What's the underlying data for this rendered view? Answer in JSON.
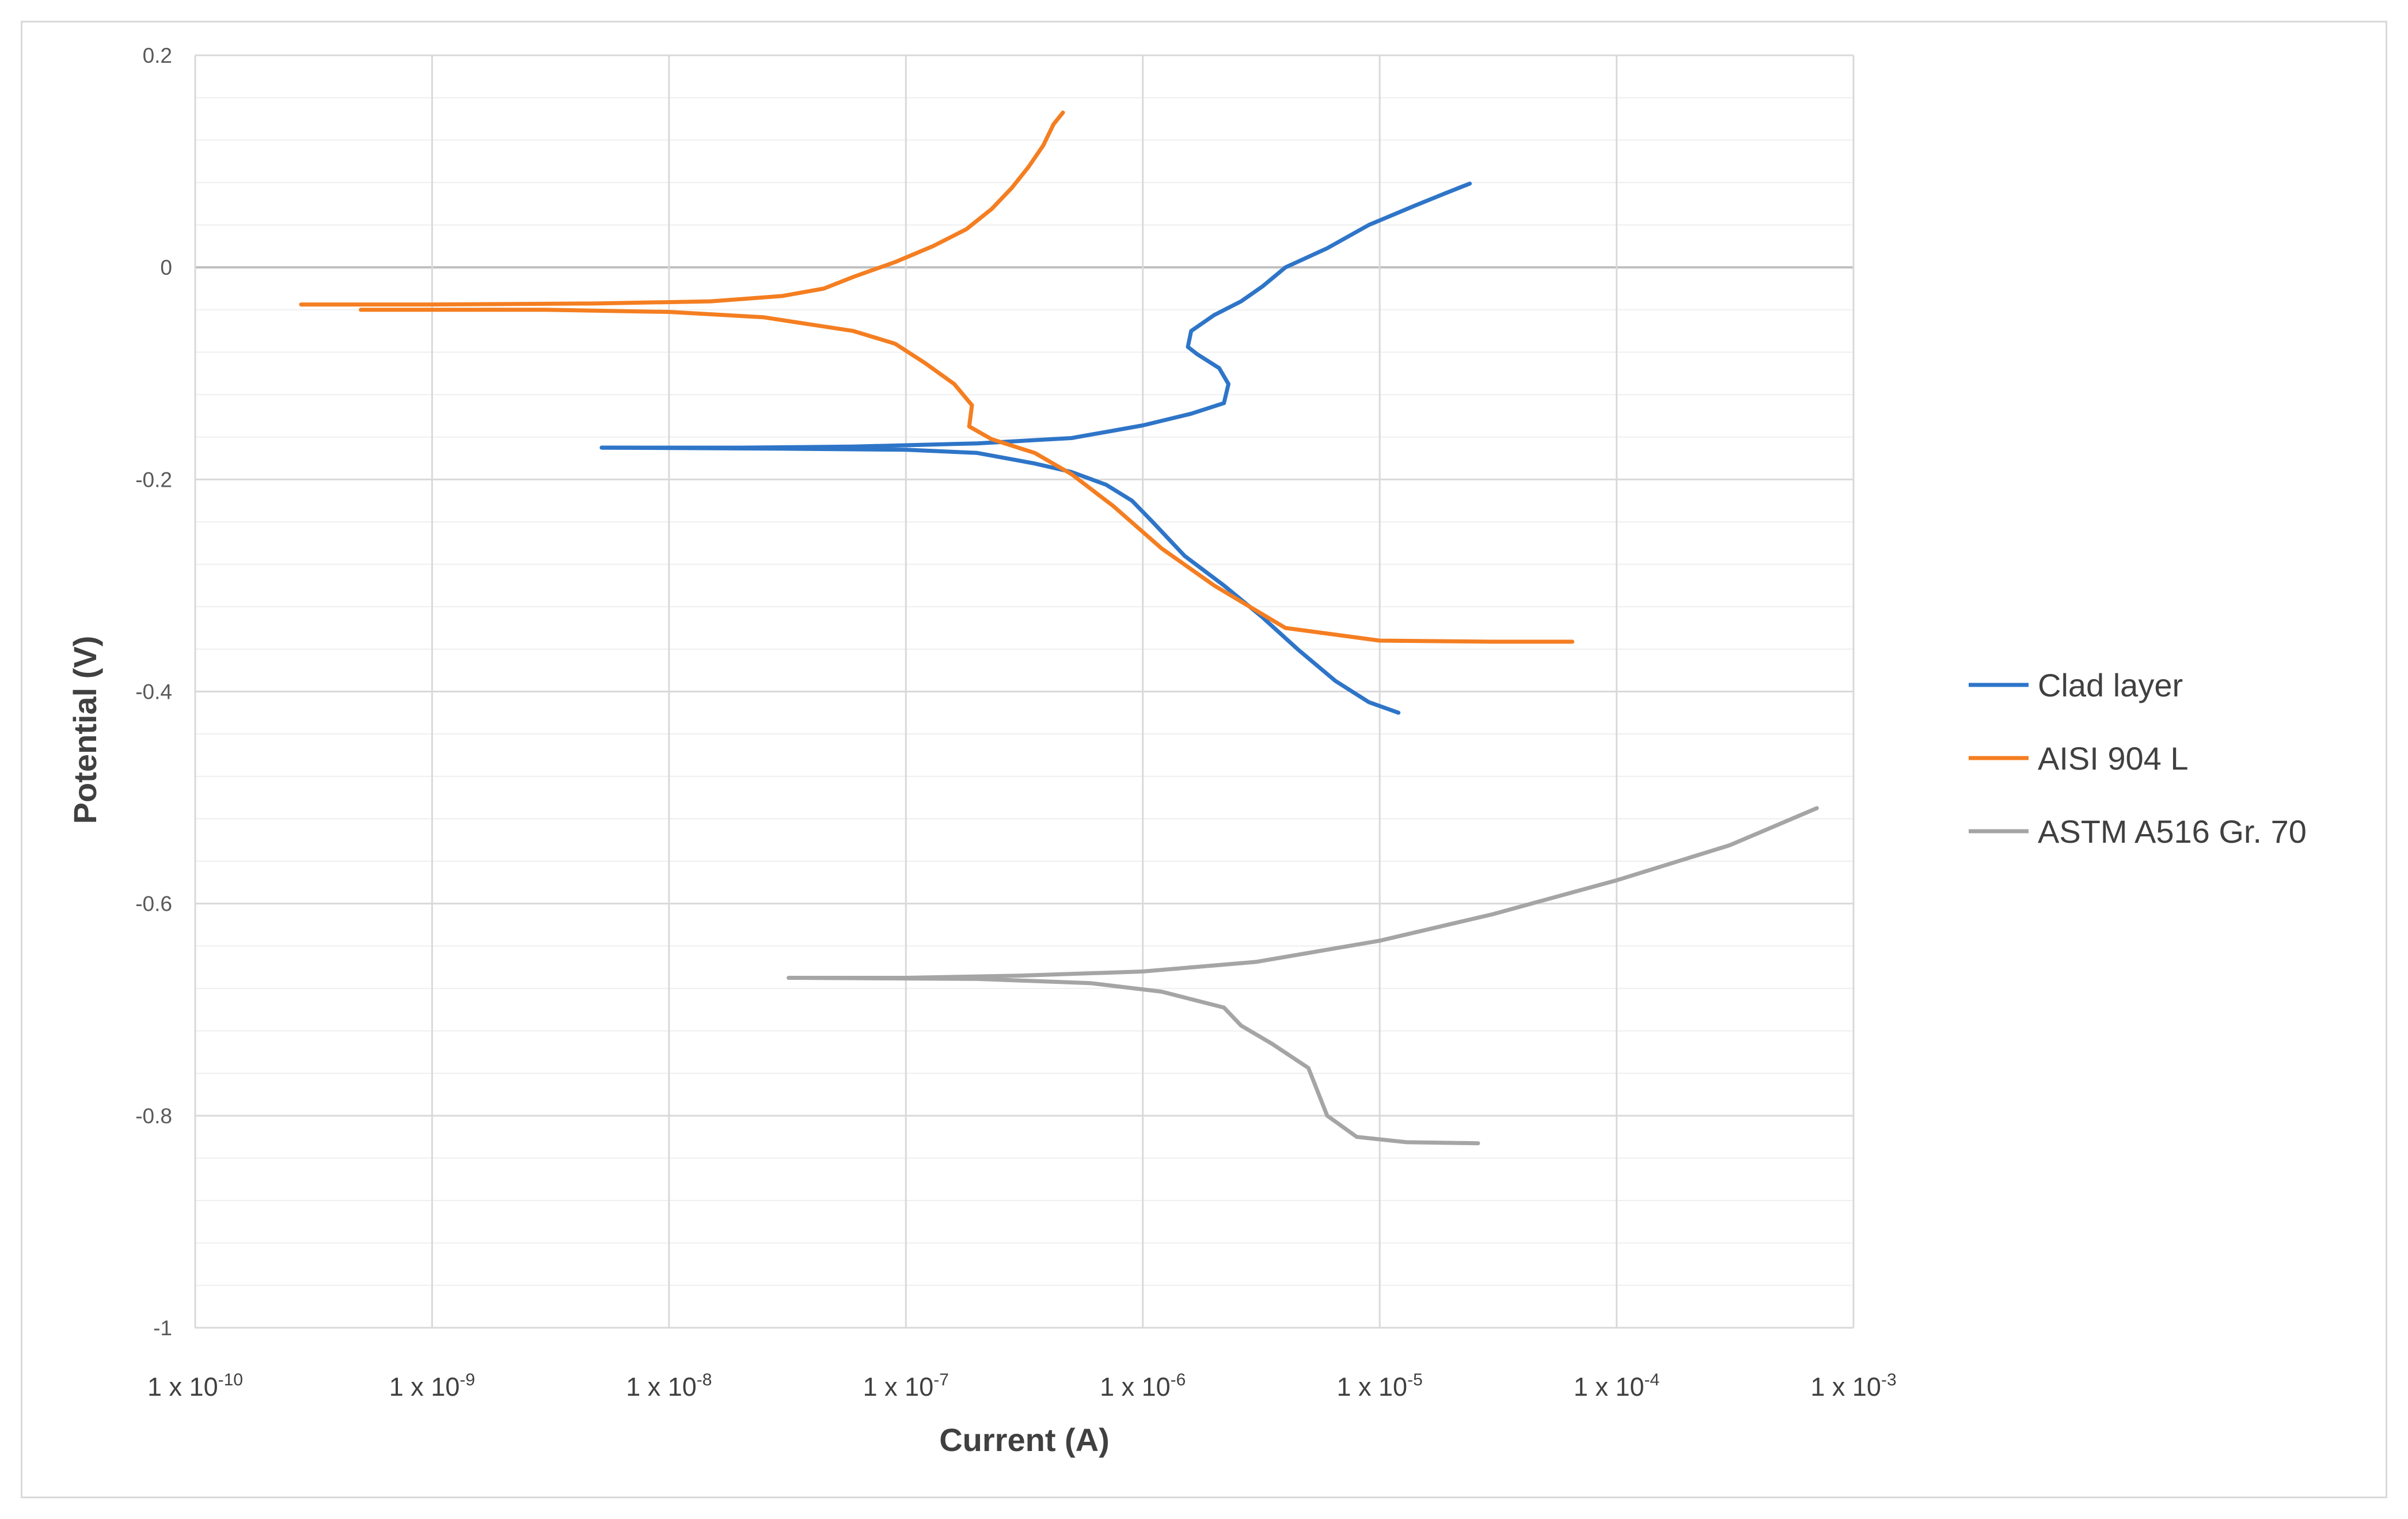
{
  "chart_data": {
    "type": "line",
    "title": "",
    "xlabel": "Current (A)",
    "ylabel": "Potential (V)",
    "x_scale": "log",
    "xlim": [
      1e-10,
      0.001
    ],
    "ylim": [
      -1,
      0.2
    ],
    "x_ticks": [
      {
        "value": 1e-10,
        "base": "1 x 10",
        "exp": "-10"
      },
      {
        "value": 1e-09,
        "base": "1 x 10",
        "exp": "-9"
      },
      {
        "value": 1e-08,
        "base": "1 x 10",
        "exp": "-8"
      },
      {
        "value": 1e-07,
        "base": "1 x 10",
        "exp": "-7"
      },
      {
        "value": 1e-06,
        "base": "1 x 10",
        "exp": "-6"
      },
      {
        "value": 1e-05,
        "base": "1 x 10",
        "exp": "-5"
      },
      {
        "value": 0.0001,
        "base": "1 x 10",
        "exp": "-4"
      },
      {
        "value": 0.001,
        "base": "1 x 10",
        "exp": "-3"
      }
    ],
    "y_ticks": [
      {
        "value": 0.2,
        "label": "0.2"
      },
      {
        "value": 0,
        "label": "0"
      },
      {
        "value": -0.2,
        "label": "-0.2"
      },
      {
        "value": -0.4,
        "label": "-0.4"
      },
      {
        "value": -0.6,
        "label": "-0.6"
      },
      {
        "value": -0.8,
        "label": "-0.8"
      },
      {
        "value": -1,
        "label": "-1"
      }
    ],
    "y_minor_step": 0.04,
    "grid": true,
    "legend_position": "right",
    "series": [
      {
        "name": "Clad layer",
        "color": "#2e75c8",
        "points": [
          [
            5.2e-09,
            -0.17
          ],
          [
            2e-08,
            -0.17
          ],
          [
            6e-08,
            -0.169
          ],
          [
            2e-07,
            -0.166
          ],
          [
            5e-07,
            -0.161
          ],
          [
            1e-06,
            -0.149
          ],
          [
            1.6e-06,
            -0.138
          ],
          [
            2.2e-06,
            -0.128
          ],
          [
            2.3e-06,
            -0.11
          ],
          [
            2.1e-06,
            -0.095
          ],
          [
            1.7e-06,
            -0.082
          ],
          [
            1.55e-06,
            -0.075
          ],
          [
            1.6e-06,
            -0.06
          ],
          [
            2e-06,
            -0.045
          ],
          [
            2.6e-06,
            -0.032
          ],
          [
            3.2e-06,
            -0.018
          ],
          [
            4e-06,
            0.0
          ],
          [
            6e-06,
            0.018
          ],
          [
            9e-06,
            0.04
          ],
          [
            1.4e-05,
            0.058
          ],
          [
            1.9e-05,
            0.07
          ],
          [
            2.4e-05,
            0.079
          ]
        ],
        "cathodic_points": [
          [
            5.2e-09,
            -0.17
          ],
          [
            3e-08,
            -0.171
          ],
          [
            1e-07,
            -0.172
          ],
          [
            2e-07,
            -0.175
          ],
          [
            3.5e-07,
            -0.185
          ],
          [
            5e-07,
            -0.193
          ],
          [
            7e-07,
            -0.205
          ],
          [
            9e-07,
            -0.22
          ],
          [
            1.1e-06,
            -0.24
          ],
          [
            1.5e-06,
            -0.272
          ],
          [
            2.2e-06,
            -0.3
          ],
          [
            3.2e-06,
            -0.33
          ],
          [
            4.5e-06,
            -0.36
          ],
          [
            6.5e-06,
            -0.39
          ],
          [
            9e-06,
            -0.41
          ],
          [
            1.2e-05,
            -0.42
          ]
        ]
      },
      {
        "name": "AISI 904 L",
        "color": "#f47e21",
        "points": [
          [
            2.8e-10,
            -0.035
          ],
          [
            1e-09,
            -0.035
          ],
          [
            5e-09,
            -0.034
          ],
          [
            1.5e-08,
            -0.032
          ],
          [
            3e-08,
            -0.027
          ],
          [
            4.5e-08,
            -0.02
          ],
          [
            6e-08,
            -0.009
          ],
          [
            9e-08,
            0.005
          ],
          [
            1.3e-07,
            0.02
          ],
          [
            1.8e-07,
            0.036
          ],
          [
            2.3e-07,
            0.055
          ],
          [
            2.8e-07,
            0.075
          ],
          [
            3.3e-07,
            0.095
          ],
          [
            3.8e-07,
            0.115
          ],
          [
            4.2e-07,
            0.135
          ],
          [
            4.6e-07,
            0.146
          ]
        ],
        "cathodic_points": [
          [
            5e-10,
            -0.04
          ],
          [
            3e-09,
            -0.04
          ],
          [
            1e-08,
            -0.042
          ],
          [
            2.5e-08,
            -0.047
          ],
          [
            4e-08,
            -0.054
          ],
          [
            6e-08,
            -0.06
          ],
          [
            9e-08,
            -0.072
          ],
          [
            1.2e-07,
            -0.09
          ],
          [
            1.6e-07,
            -0.11
          ],
          [
            1.9e-07,
            -0.13
          ],
          [
            1.85e-07,
            -0.15
          ],
          [
            2.3e-07,
            -0.162
          ],
          [
            3.5e-07,
            -0.175
          ],
          [
            5e-07,
            -0.195
          ],
          [
            7.5e-07,
            -0.225
          ],
          [
            1.2e-06,
            -0.265
          ],
          [
            2e-06,
            -0.3
          ],
          [
            4e-06,
            -0.34
          ],
          [
            1e-05,
            -0.352
          ],
          [
            3e-05,
            -0.353
          ],
          [
            6.5e-05,
            -0.353
          ]
        ]
      },
      {
        "name": "ASTM A516 Gr. 70",
        "color": "#a5a5a5",
        "points": [
          [
            3.2e-08,
            -0.67
          ],
          [
            1e-07,
            -0.67
          ],
          [
            3e-07,
            -0.668
          ],
          [
            1e-06,
            -0.664
          ],
          [
            3e-06,
            -0.655
          ],
          [
            1e-05,
            -0.635
          ],
          [
            3e-05,
            -0.61
          ],
          [
            0.0001,
            -0.578
          ],
          [
            0.0003,
            -0.545
          ],
          [
            0.0007,
            -0.51
          ]
        ],
        "cathodic_points": [
          [
            3.2e-08,
            -0.67
          ],
          [
            2e-07,
            -0.671
          ],
          [
            6e-07,
            -0.675
          ],
          [
            1.2e-06,
            -0.683
          ],
          [
            2.2e-06,
            -0.698
          ],
          [
            2.6e-06,
            -0.715
          ],
          [
            3.5e-06,
            -0.732
          ],
          [
            5e-06,
            -0.755
          ],
          [
            6e-06,
            -0.8
          ],
          [
            8e-06,
            -0.82
          ],
          [
            1.3e-05,
            -0.825
          ],
          [
            2.6e-05,
            -0.826
          ]
        ]
      }
    ]
  }
}
